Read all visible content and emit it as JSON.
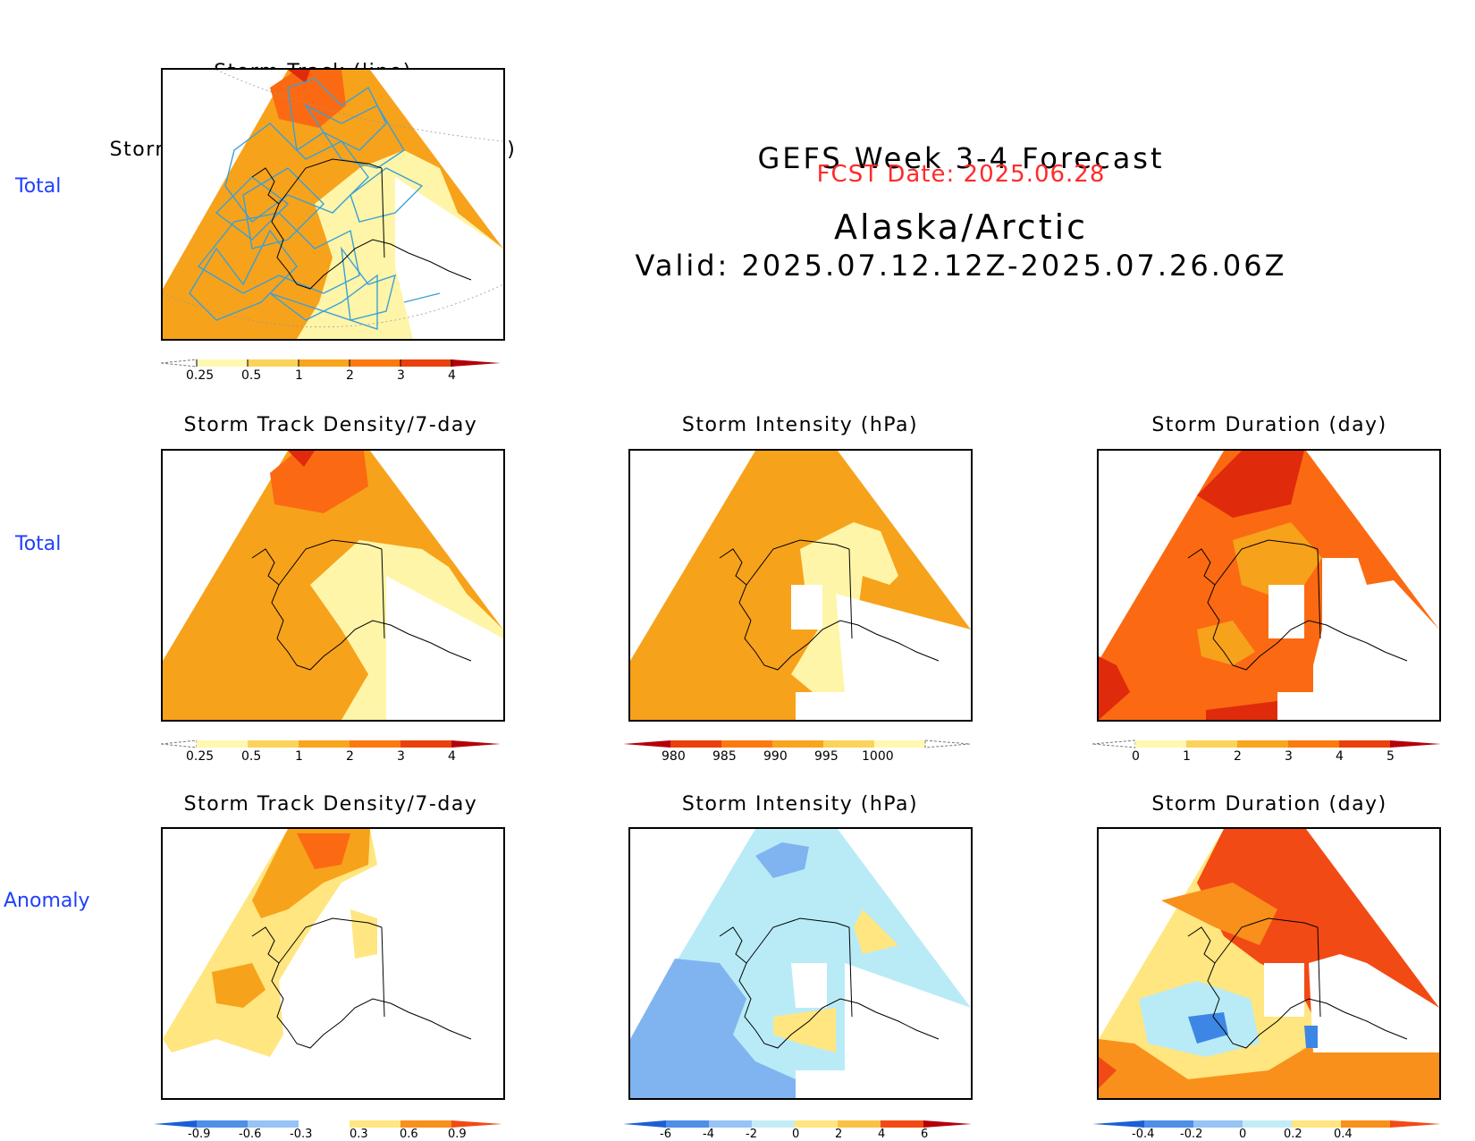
{
  "header": {
    "title_line1": "GEFS Week 3-4 Forecast",
    "title_line2": "Valid: 2025.07.12.12Z-2025.07.26.06Z",
    "fcst_date": "FCST Date: 2025.06.28",
    "region": "Alaska/Arctic"
  },
  "row_labels": [
    "Total",
    "Total",
    "Anomaly"
  ],
  "panels": {
    "top": {
      "title_line1": "Storm Track (line)",
      "title_line2": "Storm Track Density/7-day (shading)"
    },
    "total_density": {
      "title": "Storm Track Density/7-day"
    },
    "total_intensity": {
      "title": "Storm Intensity (hPa)"
    },
    "total_duration": {
      "title": "Storm Duration (day)"
    },
    "anom_density": {
      "title": "Storm Track Density/7-day"
    },
    "anom_intensity": {
      "title": "Storm Intensity (hPa)"
    },
    "anom_duration": {
      "title": "Storm Duration (day)"
    }
  },
  "colorbars": {
    "density": {
      "labels": [
        "0.25",
        "0.5",
        "1",
        "2",
        "3",
        "4"
      ],
      "colors": [
        "#fff8b0",
        "#fbd35a",
        "#f9a51d",
        "#fb7a10",
        "#e8410d",
        "#b3000a"
      ]
    },
    "intensity": {
      "labels": [
        "980",
        "985",
        "990",
        "995",
        "1000"
      ],
      "colors": [
        "#b3000a",
        "#e8410d",
        "#fb7a10",
        "#f9a51d",
        "#fbd35a",
        "#fff8b0"
      ]
    },
    "duration": {
      "labels": [
        "0",
        "1",
        "2",
        "3",
        "4",
        "5"
      ],
      "colors": [
        "#fff8b0",
        "#fbd35a",
        "#f9a51d",
        "#fb7a10",
        "#e8410d",
        "#b3000a"
      ]
    },
    "density_anom": {
      "labels": [
        "-0.9",
        "-0.6",
        "-0.3",
        "0.3",
        "0.6",
        "0.9"
      ],
      "colors": [
        "#1a5fd6",
        "#4f8fe8",
        "#96c4f5",
        "#c4ecf6",
        "#ffffff",
        "#ffe680",
        "#fbc145",
        "#f9901b",
        "#f24a15"
      ]
    },
    "intensity_anom": {
      "labels": [
        "-6",
        "-4",
        "-2",
        "0",
        "2",
        "4",
        "6"
      ],
      "colors": [
        "#1a5fd6",
        "#4f8fe8",
        "#96c4f5",
        "#c4ecf6",
        "#ffe680",
        "#fbc145",
        "#f9901b",
        "#f24a15"
      ]
    },
    "duration_anom": {
      "labels": [
        "-0.4",
        "-0.2",
        "0",
        "0.2",
        "0.4"
      ],
      "colors": [
        "#1a5fd6",
        "#4f8fe8",
        "#96c4f5",
        "#c4ecf6",
        "#ffe680",
        "#fbc145",
        "#f9901b",
        "#f24a15"
      ]
    }
  },
  "colors": {
    "row_label": "#1f3fff",
    "fcst_date": "#ff2a2a",
    "track_line": "#3aa0d8",
    "light_yellow": "#fff5a8",
    "orange": "#f7a21b",
    "dark_orange": "#fb6a12",
    "red": "#e02a0c",
    "light_blue": "#b9ebf7",
    "mid_blue": "#7fb4f0",
    "blue": "#3e86e6"
  }
}
